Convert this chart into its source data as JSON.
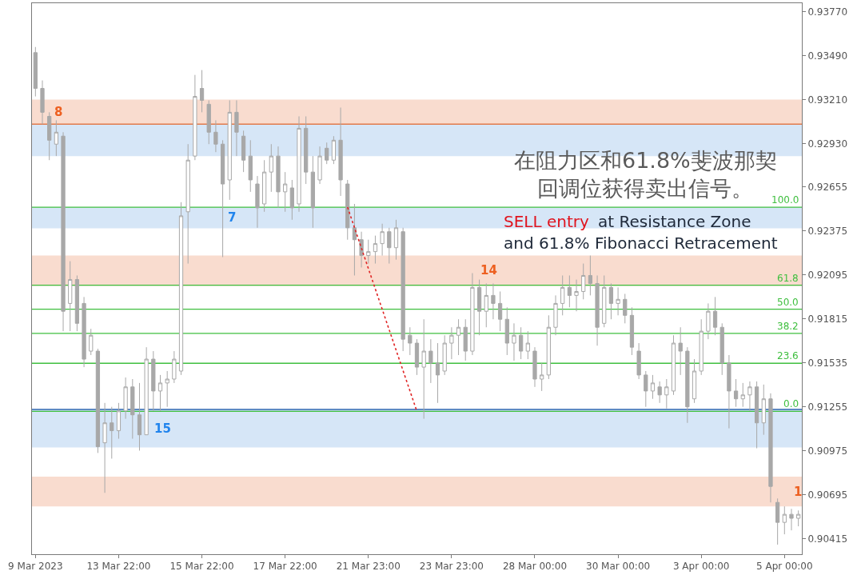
{
  "chart_data": {
    "type": "candlestick",
    "color": "#a8a8a8",
    "categories": [
      "9 Mar 2023",
      null,
      null,
      null,
      null,
      null,
      null,
      null,
      null,
      null,
      null,
      null,
      "13 Mar 22:00",
      null,
      null,
      null,
      null,
      null,
      null,
      null,
      null,
      null,
      null,
      null,
      "15 Mar 22:00",
      null,
      null,
      null,
      null,
      null,
      null,
      null,
      null,
      null,
      null,
      null,
      "17 Mar 22:00",
      null,
      null,
      null,
      null,
      null,
      null,
      null,
      null,
      null,
      null,
      null,
      "21 Mar 23:00",
      null,
      null,
      null,
      null,
      null,
      null,
      null,
      null,
      null,
      null,
      null,
      "23 Mar 23:00",
      null,
      null,
      null,
      null,
      null,
      null,
      null,
      null,
      null,
      null,
      null,
      "28 Mar 00:00",
      null,
      null,
      null,
      null,
      null,
      null,
      null,
      null,
      null,
      null,
      null,
      "30 Mar 00:00",
      null,
      null,
      null,
      null,
      null,
      null,
      null,
      null,
      null,
      null,
      null,
      "3 Apr 00:00",
      null,
      null,
      null,
      null,
      null,
      null,
      null,
      null,
      null,
      null,
      null,
      "5 Apr 00:00",
      null,
      null
    ],
    "ohlc": [
      [
        0.93511,
        0.93547,
        0.93232,
        0.93283
      ],
      [
        0.93283,
        0.93334,
        0.93055,
        0.93131
      ],
      [
        0.93105,
        0.93131,
        0.92826,
        0.92953
      ],
      [
        0.92928,
        0.9308,
        0.92852,
        0.93004
      ],
      [
        0.92979,
        0.93004,
        0.91736,
        0.91863
      ],
      [
        0.91913,
        0.92182,
        0.91736,
        0.92065
      ],
      [
        0.92065,
        0.92091,
        0.91736,
        0.91786
      ],
      [
        0.91913,
        0.91954,
        0.91507,
        0.91558
      ],
      [
        0.91609,
        0.91751,
        0.91584,
        0.9171
      ],
      [
        0.91609,
        0.91624,
        0.9096,
        0.91
      ],
      [
        0.91025,
        0.91279,
        0.90706,
        0.91152
      ],
      [
        0.91152,
        0.91254,
        0.90924,
        0.91102
      ],
      [
        0.91102,
        0.91279,
        0.91051,
        0.91228
      ],
      [
        0.91228,
        0.91441,
        0.91178,
        0.91381
      ],
      [
        0.91381,
        0.91431,
        0.91051,
        0.91203
      ],
      [
        0.91203,
        0.91406,
        0.90975,
        0.91076
      ],
      [
        0.91076,
        0.91634,
        0.91076,
        0.91558
      ],
      [
        0.91558,
        0.91609,
        0.91228,
        0.91355
      ],
      [
        0.91355,
        0.91457,
        0.91228,
        0.91406
      ],
      [
        0.91406,
        0.91482,
        0.91254,
        0.91431
      ],
      [
        0.91431,
        0.91609,
        0.91406,
        0.91558
      ],
      [
        0.91482,
        0.92558,
        0.91457,
        0.92471
      ],
      [
        0.92497,
        0.92928,
        0.92167,
        0.92826
      ],
      [
        0.92852,
        0.93369,
        0.92826,
        0.93232
      ],
      [
        0.93283,
        0.934,
        0.93131,
        0.93207
      ],
      [
        0.93182,
        0.93207,
        0.92928,
        0.93004
      ],
      [
        0.93004,
        0.9308,
        0.92877,
        0.92928
      ],
      [
        0.92928,
        0.92953,
        0.92208,
        0.92674
      ],
      [
        0.927,
        0.93207,
        0.92573,
        0.93131
      ],
      [
        0.93131,
        0.93207,
        0.92852,
        0.93004
      ],
      [
        0.92979,
        0.93014,
        0.9275,
        0.92826
      ],
      [
        0.92852,
        0.92953,
        0.92624,
        0.927
      ],
      [
        0.92674,
        0.92725,
        0.92395,
        0.92522
      ],
      [
        0.92547,
        0.92826,
        0.92497,
        0.9275
      ],
      [
        0.9275,
        0.92928,
        0.92624,
        0.92852
      ],
      [
        0.92852,
        0.92913,
        0.92522,
        0.92624
      ],
      [
        0.92624,
        0.9275,
        0.92497,
        0.92674
      ],
      [
        0.92649,
        0.927,
        0.92446,
        0.92522
      ],
      [
        0.92547,
        0.93105,
        0.92497,
        0.93029
      ],
      [
        0.93029,
        0.93105,
        0.92674,
        0.9275
      ],
      [
        0.9275,
        0.92852,
        0.92395,
        0.92522
      ],
      [
        0.927,
        0.92913,
        0.92674,
        0.92852
      ],
      [
        0.92902,
        0.92938,
        0.92801,
        0.92826
      ],
      [
        0.92826,
        0.92979,
        0.92801,
        0.92953
      ],
      [
        0.92953,
        0.93161,
        0.92598,
        0.927
      ],
      [
        0.92674,
        0.927,
        0.92319,
        0.92395
      ],
      [
        0.92395,
        0.92547,
        0.92091,
        0.92319
      ],
      [
        0.92319,
        0.9237,
        0.92142,
        0.92218
      ],
      [
        0.92218,
        0.92319,
        0.92167,
        0.92243
      ],
      [
        0.92243,
        0.92345,
        0.92167,
        0.92294
      ],
      [
        0.92294,
        0.92421,
        0.92218,
        0.9237
      ],
      [
        0.9237,
        0.92395,
        0.92167,
        0.92268
      ],
      [
        0.92268,
        0.92446,
        0.92192,
        0.92395
      ],
      [
        0.9237,
        0.92395,
        0.91609,
        0.91685
      ],
      [
        0.9171,
        0.91761,
        0.91584,
        0.9166
      ],
      [
        0.9166,
        0.91685,
        0.91457,
        0.91507
      ],
      [
        0.91507,
        0.91812,
        0.91178,
        0.91609
      ],
      [
        0.91609,
        0.91685,
        0.91406,
        0.91533
      ],
      [
        0.91533,
        0.9166,
        0.91279,
        0.91457
      ],
      [
        0.91482,
        0.9171,
        0.91457,
        0.9166
      ],
      [
        0.9166,
        0.91761,
        0.91558,
        0.9171
      ],
      [
        0.9171,
        0.91812,
        0.91584,
        0.91761
      ],
      [
        0.91761,
        0.91812,
        0.91548,
        0.91609
      ],
      [
        0.91609,
        0.92106,
        0.91584,
        0.92015
      ],
      [
        0.92015,
        0.92065,
        0.9171,
        0.91863
      ],
      [
        0.91863,
        0.9204,
        0.91761,
        0.91964
      ],
      [
        0.91964,
        0.9204,
        0.91812,
        0.91913
      ],
      [
        0.91913,
        0.91989,
        0.91736,
        0.91812
      ],
      [
        0.91812,
        0.91888,
        0.91584,
        0.9166
      ],
      [
        0.9166,
        0.91786,
        0.91548,
        0.9171
      ],
      [
        0.9171,
        0.91761,
        0.91558,
        0.91609
      ],
      [
        0.91609,
        0.91736,
        0.91558,
        0.9166
      ],
      [
        0.91609,
        0.91634,
        0.91381,
        0.91431
      ],
      [
        0.91431,
        0.91533,
        0.91355,
        0.91457
      ],
      [
        0.91457,
        0.91837,
        0.91431,
        0.91761
      ],
      [
        0.91761,
        0.91964,
        0.9171,
        0.91913
      ],
      [
        0.91913,
        0.92091,
        0.91837,
        0.92015
      ],
      [
        0.92015,
        0.92091,
        0.91888,
        0.91964
      ],
      [
        0.91964,
        0.92065,
        0.91863,
        0.91989
      ],
      [
        0.91989,
        0.92167,
        0.91939,
        0.92091
      ],
      [
        0.92091,
        0.92218,
        0.91964,
        0.9204
      ],
      [
        0.9204,
        0.92091,
        0.91644,
        0.91761
      ],
      [
        0.91786,
        0.92091,
        0.91761,
        0.92015
      ],
      [
        0.92015,
        0.9204,
        0.91812,
        0.91913
      ],
      [
        0.91913,
        0.92015,
        0.91837,
        0.91939
      ],
      [
        0.91939,
        0.91974,
        0.91786,
        0.91837
      ],
      [
        0.91837,
        0.91888,
        0.91584,
        0.91634
      ],
      [
        0.91609,
        0.9166,
        0.91431,
        0.91457
      ],
      [
        0.91457,
        0.91482,
        0.91254,
        0.91355
      ],
      [
        0.91355,
        0.91457,
        0.91305,
        0.91406
      ],
      [
        0.91381,
        0.91416,
        0.91279,
        0.9133
      ],
      [
        0.9133,
        0.91431,
        0.91244,
        0.91381
      ],
      [
        0.91355,
        0.9171,
        0.9133,
        0.9166
      ],
      [
        0.9166,
        0.91761,
        0.91457,
        0.91609
      ],
      [
        0.91609,
        0.91634,
        0.91152,
        0.91254
      ],
      [
        0.91305,
        0.91558,
        0.91279,
        0.91482
      ],
      [
        0.91482,
        0.91812,
        0.91457,
        0.91736
      ],
      [
        0.91736,
        0.91913,
        0.91685,
        0.91863
      ],
      [
        0.91863,
        0.91954,
        0.9171,
        0.91761
      ],
      [
        0.91761,
        0.91786,
        0.91457,
        0.91533
      ],
      [
        0.91533,
        0.91584,
        0.91117,
        0.91355
      ],
      [
        0.91355,
        0.91431,
        0.91254,
        0.91305
      ],
      [
        0.91305,
        0.91406,
        0.91254,
        0.9133
      ],
      [
        0.9133,
        0.91416,
        0.91228,
        0.91381
      ],
      [
        0.91381,
        0.91416,
        0.9099,
        0.91152
      ],
      [
        0.91152,
        0.91396,
        0.91076,
        0.91305
      ],
      [
        0.91305,
        0.9134,
        0.90645,
        0.90747
      ],
      [
        0.90645,
        0.9067,
        0.90376,
        0.90518
      ],
      [
        0.90518,
        0.9062,
        0.90442,
        0.90569
      ],
      [
        0.90569,
        0.90604,
        0.90467,
        0.90544
      ],
      [
        0.90544,
        0.90594,
        0.90493,
        0.90569
      ]
    ],
    "series": [
      {
        "type": "line",
        "color": "#e02424",
        "line_style": "dotted",
        "values": [
          null,
          null,
          null,
          null,
          null,
          null,
          null,
          null,
          null,
          null,
          null,
          null,
          null,
          null,
          null,
          null,
          null,
          null,
          null,
          null,
          null,
          null,
          null,
          null,
          null,
          null,
          null,
          null,
          null,
          null,
          null,
          null,
          null,
          null,
          null,
          null,
          null,
          null,
          null,
          null,
          null,
          null,
          null,
          null,
          null,
          0.92526,
          null,
          null,
          null,
          null,
          null,
          null,
          null,
          null,
          null,
          0.91225,
          null,
          null,
          null,
          null,
          null,
          null,
          null,
          null,
          null,
          null,
          null,
          null,
          null,
          null,
          null,
          null,
          null,
          null,
          null,
          null,
          null,
          null,
          null,
          null,
          null,
          null,
          null,
          null,
          null,
          null,
          null,
          null,
          null,
          null,
          null,
          null,
          null,
          null,
          null,
          null,
          null,
          null,
          null,
          null,
          null,
          null,
          null,
          null,
          null,
          null,
          null,
          null,
          null,
          null,
          null
        ]
      }
    ],
    "ylim": [
      0.90315,
      0.93826
    ],
    "yticks": [
      {
        "value": 0.9377,
        "label": "0.93770"
      },
      {
        "value": 0.9349,
        "label": "0.93490"
      },
      {
        "value": 0.9321,
        "label": "0.93210"
      },
      {
        "value": 0.9293,
        "label": "0.92930"
      },
      {
        "value": 0.92655,
        "label": "0.92655"
      },
      {
        "value": 0.92375,
        "label": "0.92375"
      },
      {
        "value": 0.92095,
        "label": "0.92095"
      },
      {
        "value": 0.91815,
        "label": "0.91815"
      },
      {
        "value": 0.91535,
        "label": "0.91535"
      },
      {
        "value": 0.91255,
        "label": "0.91255"
      },
      {
        "value": 0.90975,
        "label": "0.90975"
      },
      {
        "value": 0.90695,
        "label": "0.90695"
      },
      {
        "value": 0.90415,
        "label": "0.90415"
      }
    ],
    "bands": [
      {
        "axis": "y",
        "from": 0.93055,
        "to": 0.93212,
        "label": "8",
        "color": "#f9dccf"
      },
      {
        "axis": "y",
        "from": 0.92852,
        "to": 0.93055,
        "color": "#d6e6f7"
      },
      {
        "axis": "y",
        "from": 0.92392,
        "to": 0.92526,
        "label": "7",
        "color": "#d6e6f7"
      },
      {
        "axis": "y",
        "from": 0.92025,
        "to": 0.92218,
        "label": "14",
        "color": "#f9dccf"
      },
      {
        "axis": "y",
        "from": 0.90995,
        "to": 0.91237,
        "label": "15",
        "color": "#d6e6f7"
      },
      {
        "axis": "y",
        "from": 0.9062,
        "to": 0.90809,
        "label": "1",
        "color": "#f9dccf"
      }
    ],
    "ref_lines": [
      {
        "axis": "y",
        "value": 0.93055,
        "color": "#e07a4c"
      },
      {
        "axis": "y",
        "value": 0.91237,
        "color": "#2f67b0"
      },
      {
        "axis": "y",
        "value": 0.92526,
        "color": "#3fbf3f"
      },
      {
        "axis": "y",
        "value": 0.92029,
        "color": "#3fbf3f"
      },
      {
        "axis": "y",
        "value": 0.91876,
        "color": "#3fbf3f"
      },
      {
        "axis": "y",
        "value": 0.91722,
        "color": "#3fbf3f"
      },
      {
        "axis": "y",
        "value": 0.91532,
        "color": "#3fbf3f"
      },
      {
        "axis": "y",
        "value": 0.91225,
        "color": "#3fbf3f"
      }
    ],
    "annotations": [
      "在阻力区和61.8%斐波那契回调位获得卖出信号。",
      "SELL entry",
      "at Resistance Zone",
      "and 61.8% Fibonacci Retracement",
      {
        "text": "100.0",
        "y": 0.92526
      },
      {
        "text": "61.8",
        "y": 0.92029
      },
      {
        "text": "50.0",
        "y": 0.91876
      },
      {
        "text": "38.2",
        "y": 0.91722
      },
      {
        "text": "23.6",
        "y": 0.91532
      },
      {
        "text": "0.0",
        "y": 0.91225
      }
    ]
  }
}
